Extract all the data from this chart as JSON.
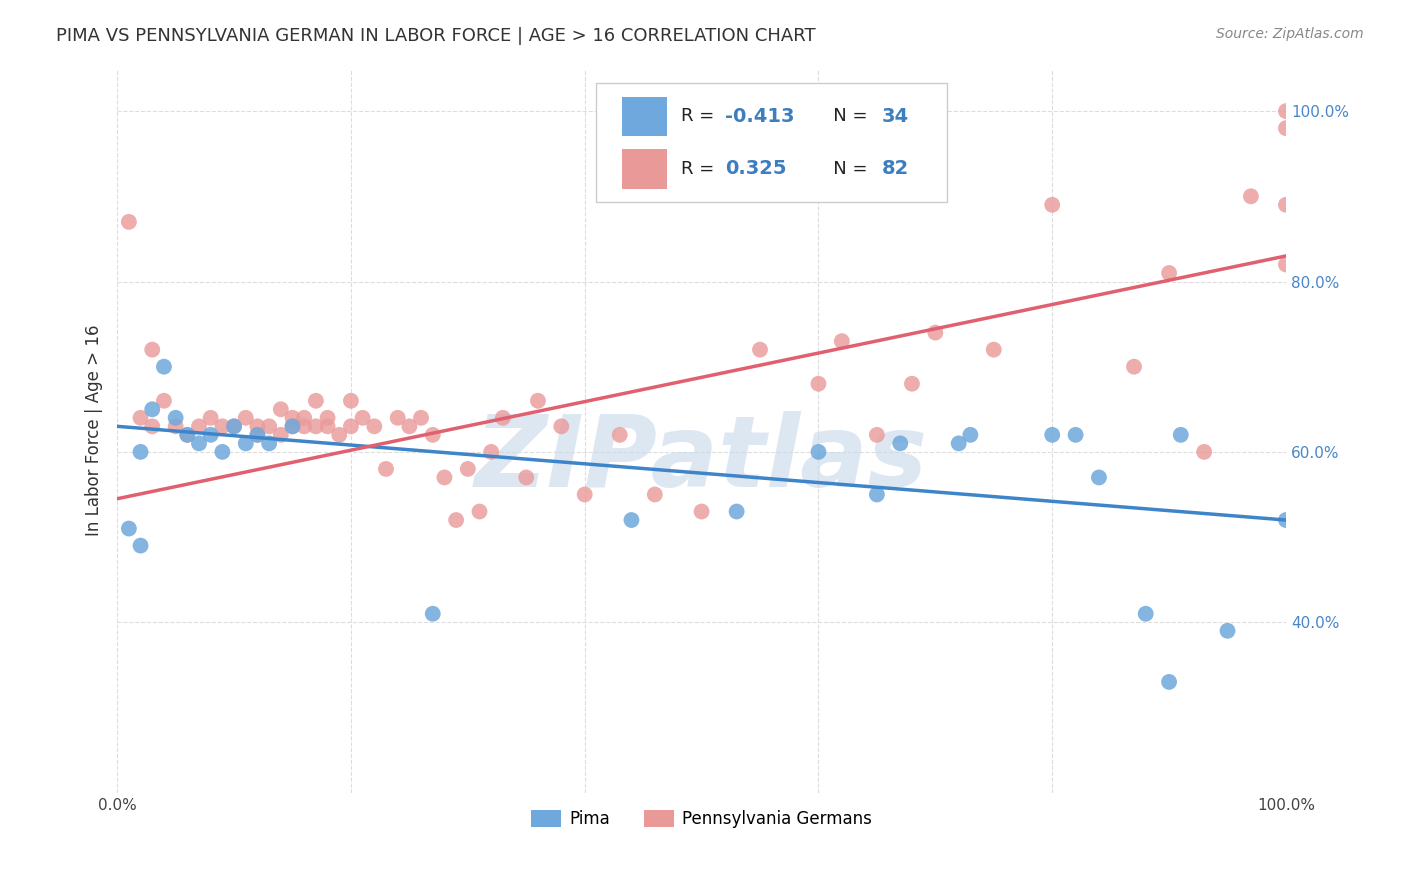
{
  "title": "PIMA VS PENNSYLVANIA GERMAN IN LABOR FORCE | AGE > 16 CORRELATION CHART",
  "source": "Source: ZipAtlas.com",
  "ylabel": "In Labor Force | Age > 16",
  "xlim": [
    0.0,
    1.0
  ],
  "ylim": [
    0.2,
    1.05
  ],
  "ytick_positions": [
    0.4,
    0.6,
    0.8,
    1.0
  ],
  "ytick_labels": [
    "40.0%",
    "60.0%",
    "80.0%",
    "100.0%"
  ],
  "xtick_positions": [
    0.0,
    0.2,
    0.4,
    0.6,
    0.8,
    1.0
  ],
  "xtick_labels": [
    "0.0%",
    "",
    "",
    "",
    "",
    "100.0%"
  ],
  "pima_color": "#6fa8dc",
  "penn_color": "#ea9999",
  "pima_line_color": "#3d85c8",
  "penn_line_color": "#e06070",
  "pima_x": [
    0.01,
    0.02,
    0.02,
    0.03,
    0.04,
    0.05,
    0.06,
    0.07,
    0.08,
    0.09,
    0.1,
    0.11,
    0.12,
    0.13,
    0.15,
    0.27,
    0.44,
    0.53,
    0.6,
    0.65,
    0.67,
    0.72,
    0.73,
    0.8,
    0.82,
    0.84,
    0.88,
    0.9,
    0.91,
    0.95,
    1.0
  ],
  "pima_y": [
    0.51,
    0.49,
    0.6,
    0.65,
    0.7,
    0.64,
    0.62,
    0.61,
    0.62,
    0.6,
    0.63,
    0.61,
    0.62,
    0.61,
    0.63,
    0.41,
    0.52,
    0.53,
    0.6,
    0.55,
    0.61,
    0.61,
    0.62,
    0.62,
    0.62,
    0.57,
    0.41,
    0.33,
    0.62,
    0.39,
    0.52
  ],
  "penn_x": [
    0.01,
    0.02,
    0.03,
    0.03,
    0.04,
    0.05,
    0.06,
    0.07,
    0.08,
    0.09,
    0.1,
    0.11,
    0.12,
    0.12,
    0.13,
    0.14,
    0.14,
    0.15,
    0.15,
    0.16,
    0.16,
    0.17,
    0.17,
    0.18,
    0.18,
    0.19,
    0.2,
    0.2,
    0.21,
    0.22,
    0.23,
    0.24,
    0.25,
    0.26,
    0.27,
    0.28,
    0.29,
    0.3,
    0.31,
    0.32,
    0.33,
    0.35,
    0.36,
    0.38,
    0.4,
    0.43,
    0.46,
    0.5,
    0.55,
    0.6,
    0.62,
    0.65,
    0.68,
    0.7,
    0.75,
    0.8,
    0.87,
    0.9,
    0.93,
    0.97,
    1.0,
    1.0,
    1.0,
    1.0
  ],
  "penn_y": [
    0.87,
    0.64,
    0.63,
    0.72,
    0.66,
    0.63,
    0.62,
    0.63,
    0.64,
    0.63,
    0.63,
    0.64,
    0.63,
    0.62,
    0.63,
    0.65,
    0.62,
    0.64,
    0.63,
    0.64,
    0.63,
    0.66,
    0.63,
    0.63,
    0.64,
    0.62,
    0.66,
    0.63,
    0.64,
    0.63,
    0.58,
    0.64,
    0.63,
    0.64,
    0.62,
    0.57,
    0.52,
    0.58,
    0.53,
    0.6,
    0.64,
    0.57,
    0.66,
    0.63,
    0.55,
    0.62,
    0.55,
    0.53,
    0.72,
    0.68,
    0.73,
    0.62,
    0.68,
    0.74,
    0.72,
    0.89,
    0.7,
    0.81,
    0.6,
    0.9,
    0.82,
    0.89,
    0.98,
    1.0
  ],
  "pima_trend_start": 0.63,
  "pima_trend_end": 0.52,
  "penn_trend_start": 0.545,
  "penn_trend_end": 0.83,
  "background_color": "#ffffff",
  "grid_color": "#dddddd",
  "watermark_text": "ZIPatlas",
  "watermark_color": "#c5d8ea"
}
